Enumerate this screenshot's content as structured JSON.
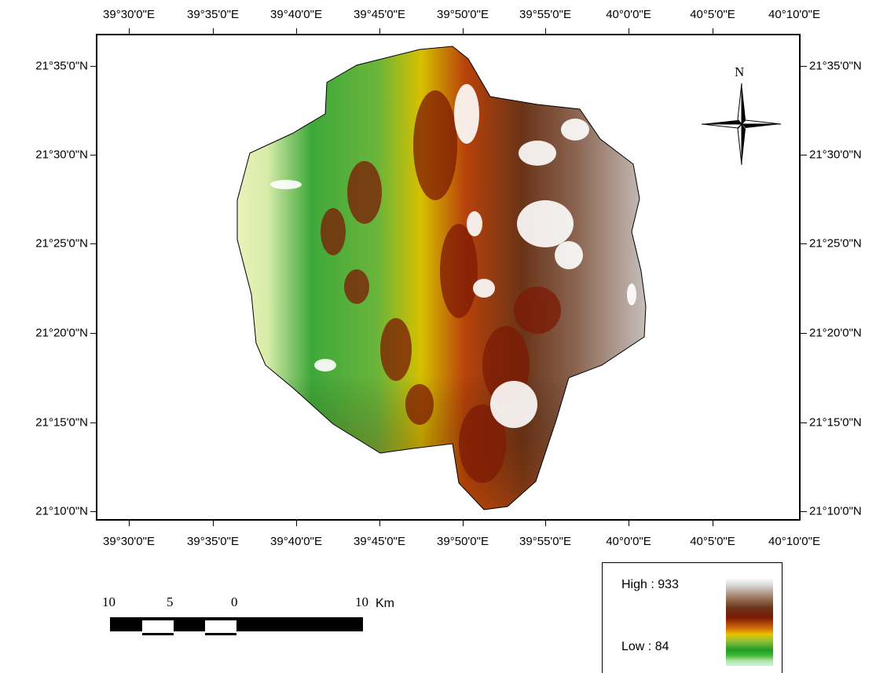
{
  "map": {
    "top_ticks": [
      "39°30'0\"E",
      "39°35'0\"E",
      "39°40'0\"E",
      "39°45'0\"E",
      "39°50'0\"E",
      "39°55'0\"E",
      "40°0'0\"E",
      "40°5'0\"E",
      "40°10'0\"E"
    ],
    "bottom_ticks": [
      "39°30'0\"E",
      "39°35'0\"E",
      "39°40'0\"E",
      "39°45'0\"E",
      "39°50'0\"E",
      "39°55'0\"E",
      "40°0'0\"E",
      "40°5'0\"E",
      "40°10'0\"E"
    ],
    "left_ticks": [
      "21°35'0\"N",
      "21°30'0\"N",
      "21°25'0\"N",
      "21°20'0\"N",
      "21°15'0\"N",
      "21°10'0\"N"
    ],
    "right_ticks": [
      "21°35'0\"N",
      "21°30'0\"N",
      "21°25'0\"N",
      "21°20'0\"N",
      "21°15'0\"N",
      "21°10'0\"N"
    ],
    "north_label": "N"
  },
  "scale": {
    "labels": [
      "10",
      "5",
      "0",
      "10"
    ],
    "unit": "Km"
  },
  "legend": {
    "high_label": "High : 933",
    "low_label": "Low : 84",
    "colors": [
      "#ffffff",
      "#a07c64",
      "#7d1a05",
      "#d06a08",
      "#e8c400",
      "#229a26",
      "#c8f5e8"
    ]
  }
}
